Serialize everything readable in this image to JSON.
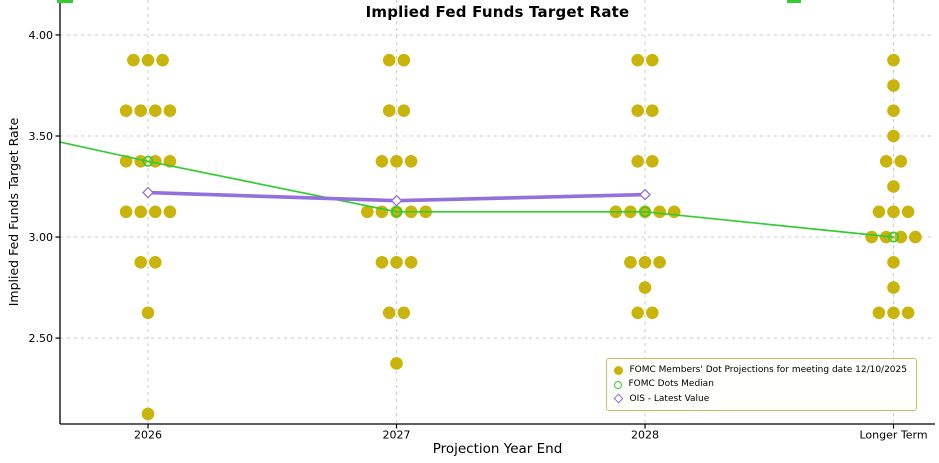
{
  "title": "Implied Fed Funds Target Rate",
  "axes": {
    "x_label": "Projection Year End",
    "y_label": "Implied Fed Funds Target Rate"
  },
  "colors": {
    "dots": "#c9b40b",
    "median": "#33cc33",
    "ois": "#9370db",
    "grid": "#cccccc",
    "axis": "#000000",
    "legend_border": "#c6c06a",
    "legend_bg": "#fffffb"
  },
  "chart_data": {
    "type": "scatter",
    "title": "Implied Fed Funds Target Rate",
    "xlabel": "Projection Year End",
    "ylabel": "Implied Fed Funds Target Rate",
    "categories": [
      "2026",
      "2027",
      "2028",
      "Longer Term"
    ],
    "ylim": [
      2.075,
      4.173
    ],
    "y_ticks": [
      {
        "value": 4.0,
        "label": "4.00"
      },
      {
        "value": 3.5,
        "label": "3.50"
      },
      {
        "value": 3.0,
        "label": "3.00"
      },
      {
        "value": 2.5,
        "label": "2.50"
      }
    ],
    "grid": "dashed-major",
    "legend_position": "lower-right",
    "series": [
      {
        "name": "FOMC Members' Dot Projections for meeting date 12/10/2025",
        "type": "dot-plot",
        "marker": "filled-circle",
        "color_key": "dots",
        "columns": [
          {
            "category": "2026",
            "stacks": [
              {
                "rate": 3.875,
                "count": 3
              },
              {
                "rate": 3.625,
                "count": 4
              },
              {
                "rate": 3.375,
                "count": 4
              },
              {
                "rate": 3.125,
                "count": 4
              },
              {
                "rate": 2.875,
                "count": 2
              },
              {
                "rate": 2.625,
                "count": 1
              },
              {
                "rate": 2.125,
                "count": 1
              }
            ]
          },
          {
            "category": "2027",
            "stacks": [
              {
                "rate": 3.875,
                "count": 2
              },
              {
                "rate": 3.625,
                "count": 2
              },
              {
                "rate": 3.375,
                "count": 3
              },
              {
                "rate": 3.125,
                "count": 5
              },
              {
                "rate": 2.875,
                "count": 3
              },
              {
                "rate": 2.625,
                "count": 2
              },
              {
                "rate": 2.375,
                "count": 1
              }
            ]
          },
          {
            "category": "2028",
            "stacks": [
              {
                "rate": 3.875,
                "count": 2
              },
              {
                "rate": 3.625,
                "count": 2
              },
              {
                "rate": 3.375,
                "count": 2
              },
              {
                "rate": 3.125,
                "count": 5
              },
              {
                "rate": 2.875,
                "count": 3
              },
              {
                "rate": 2.75,
                "count": 1
              },
              {
                "rate": 2.625,
                "count": 2
              }
            ]
          },
          {
            "category": "Longer Term",
            "stacks": [
              {
                "rate": 3.875,
                "count": 1
              },
              {
                "rate": 3.75,
                "count": 1
              },
              {
                "rate": 3.625,
                "count": 1
              },
              {
                "rate": 3.5,
                "count": 1
              },
              {
                "rate": 3.375,
                "count": 2
              },
              {
                "rate": 3.25,
                "count": 1
              },
              {
                "rate": 3.125,
                "count": 3
              },
              {
                "rate": 3.0,
                "count": 4
              },
              {
                "rate": 2.875,
                "count": 1
              },
              {
                "rate": 2.75,
                "count": 1
              },
              {
                "rate": 2.625,
                "count": 3
              }
            ]
          }
        ]
      },
      {
        "name": "FOMC Dots Median",
        "type": "line",
        "marker": "open-circle",
        "color_key": "median",
        "line_width": 1.7,
        "points": [
          {
            "category": "left-edge",
            "value": 3.47
          },
          {
            "category": "2026",
            "value": 3.375
          },
          {
            "category": "2027",
            "value": 3.125
          },
          {
            "category": "2028",
            "value": 3.125
          },
          {
            "category": "Longer Term",
            "value": 3.0
          }
        ]
      },
      {
        "name": "OIS - Latest Value",
        "type": "line",
        "marker": "open-diamond",
        "color_key": "ois",
        "line_width": 3.6,
        "points": [
          {
            "category": "2026",
            "value": 3.22
          },
          {
            "category": "2027",
            "value": 3.18
          },
          {
            "category": "2028",
            "value": 3.21
          }
        ]
      }
    ]
  },
  "legend": {
    "items": [
      {
        "label": "FOMC Members' Dot Projections for meeting date 12/10/2025",
        "marker": "filled-circle"
      },
      {
        "label": "FOMC Dots Median",
        "marker": "open-circle"
      },
      {
        "label": "OIS - Latest Value",
        "marker": "open-diamond"
      }
    ]
  }
}
